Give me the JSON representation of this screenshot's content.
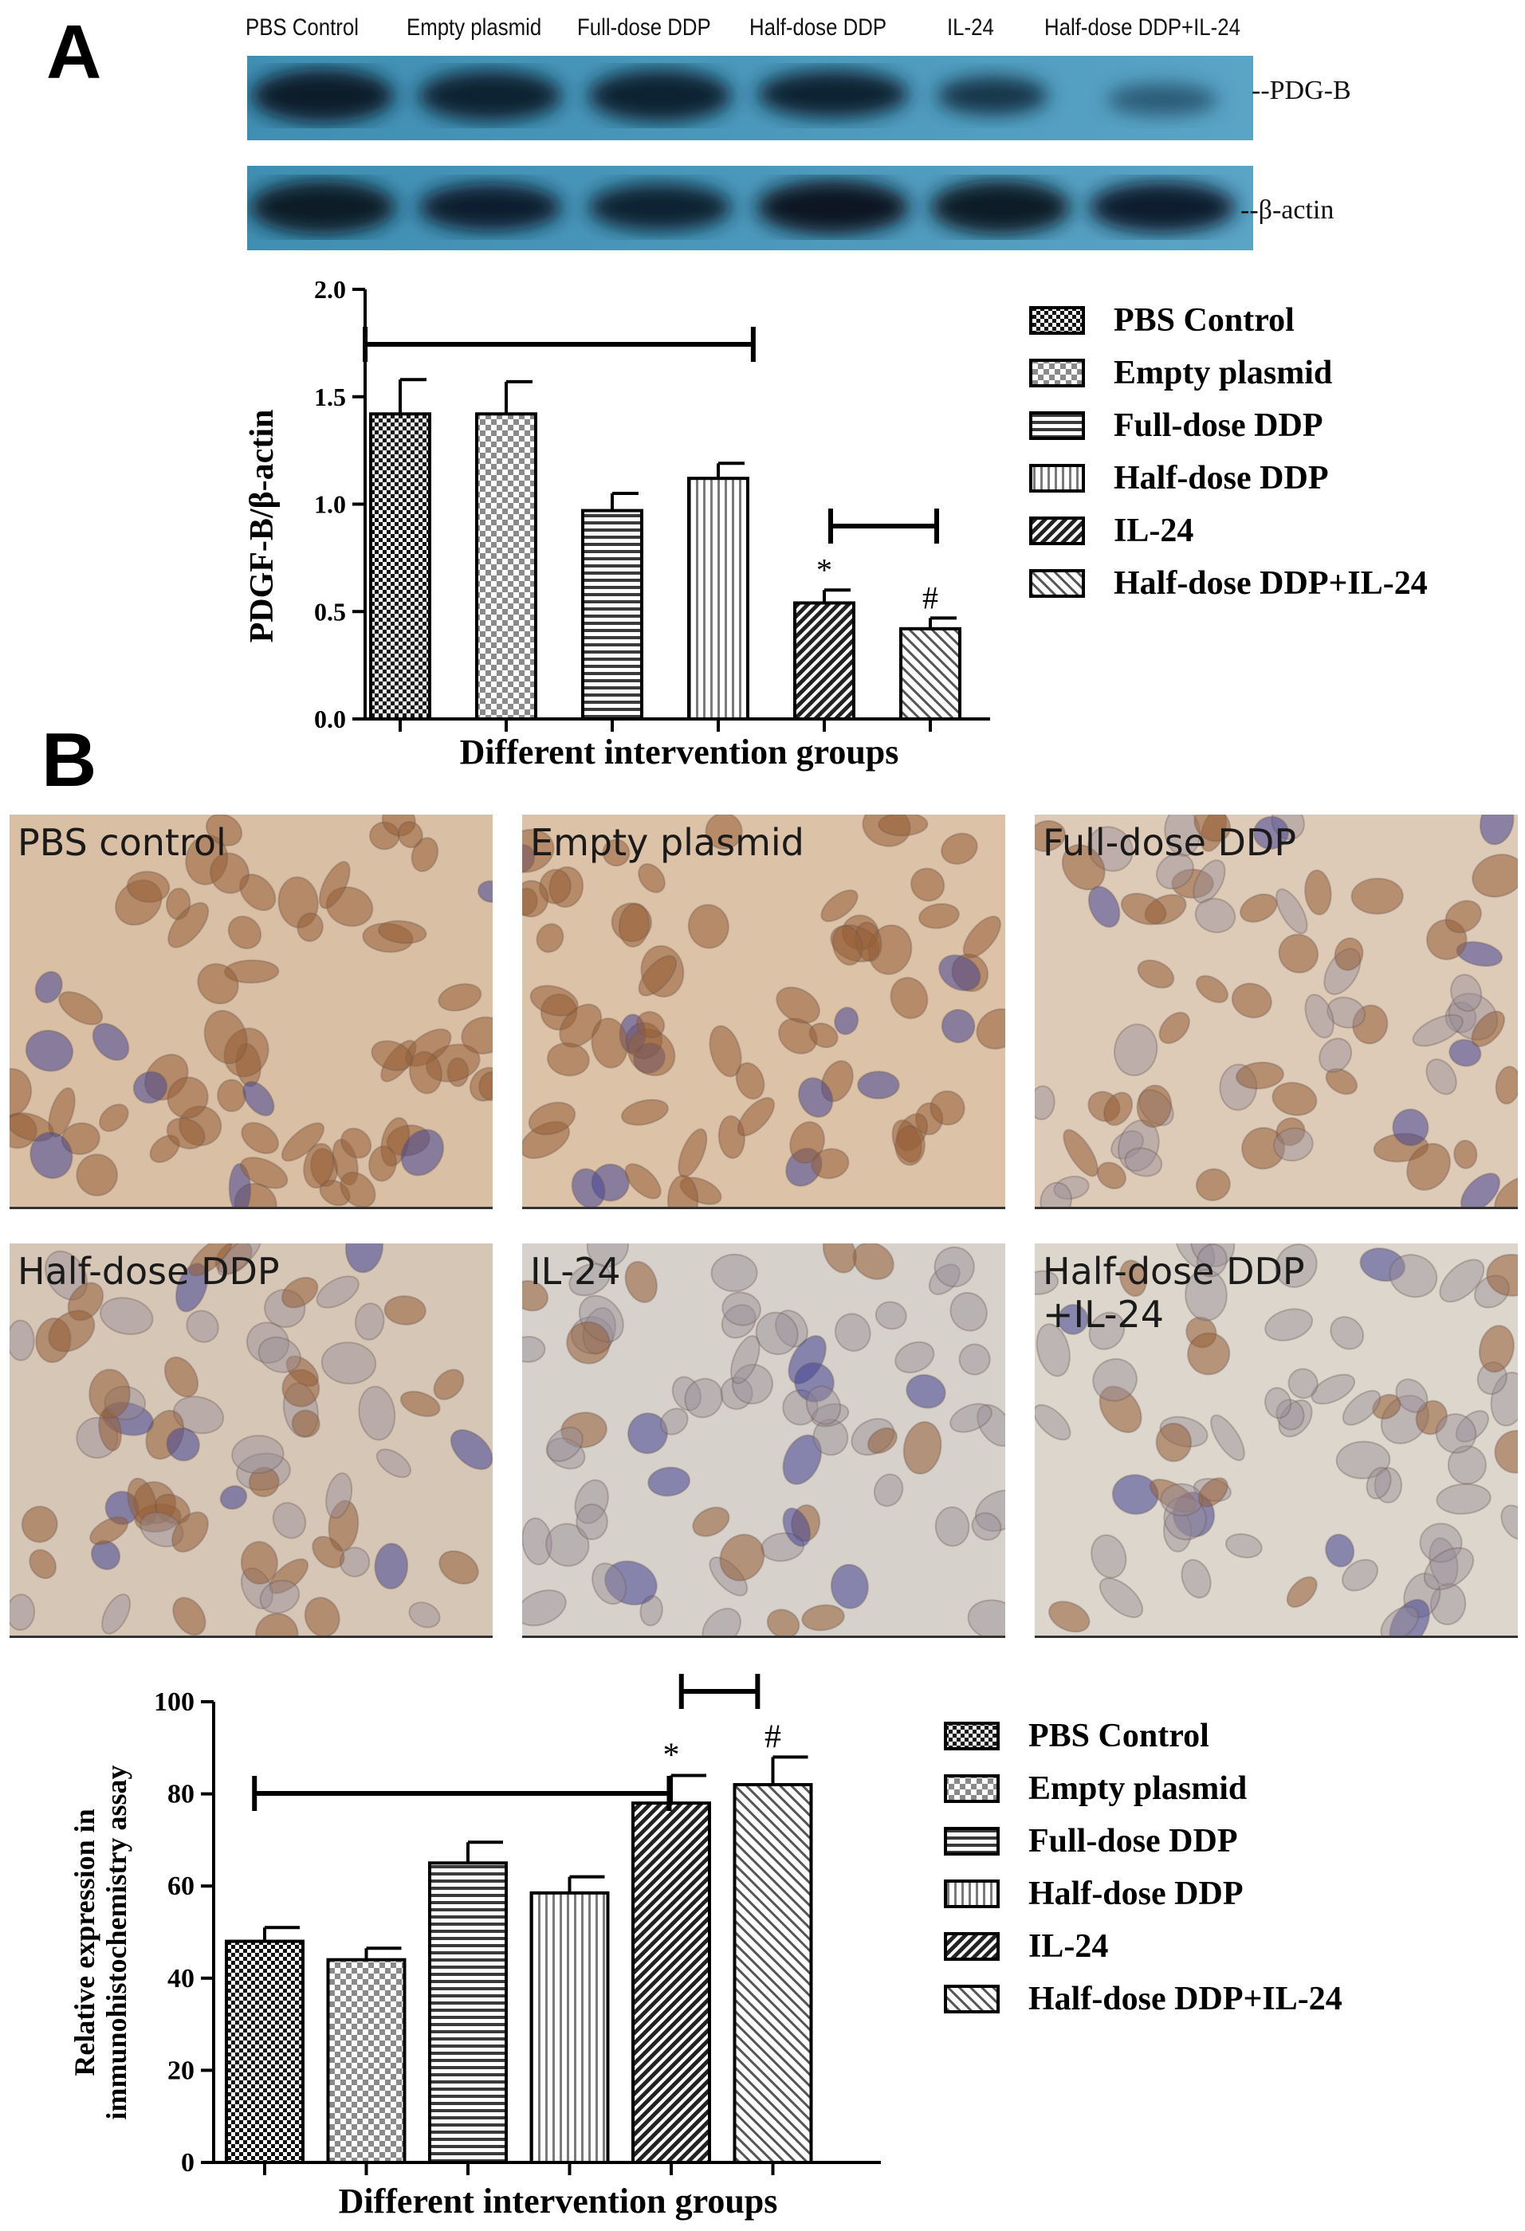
{
  "panel_a": {
    "letter": "A"
  },
  "panel_b": {
    "letter": "B"
  },
  "blot": {
    "lanes": [
      "PBS Control",
      "Empty plasmid",
      "Full-dose DDP",
      "Half-dose DDP",
      "IL-24",
      "Half-dose DDP+IL-24"
    ],
    "band_labels": [
      "--PDG-B",
      "--β-actin"
    ]
  },
  "micrographs": [
    {
      "label": "PBS control",
      "tint": "#d9bfa4"
    },
    {
      "label": "Empty plasmid",
      "tint": "#dcc2a6"
    },
    {
      "label": "Full-dose DDP",
      "tint": "#ddcbb8"
    },
    {
      "label": "Half-dose DDP",
      "tint": "#d6c6b6"
    },
    {
      "label": "IL-24",
      "tint": "#d6d1cb"
    },
    {
      "label": "Half-dose DDP\n+IL-24",
      "tint": "#dcd6cc"
    }
  ],
  "chart_data": [
    {
      "type": "bar",
      "categories": [
        "PBS Control",
        "Empty plasmid",
        "Full-dose DDP",
        "Half-dose DDP",
        "IL-24",
        "Half-dose DDP+IL-24"
      ],
      "values": [
        1.42,
        1.42,
        0.97,
        1.12,
        0.54,
        0.42
      ],
      "errors": [
        0.16,
        0.15,
        0.08,
        0.07,
        0.06,
        0.05
      ],
      "markers": [
        "",
        "",
        "",
        "",
        "*",
        "#"
      ],
      "xlabel": "Different intervention groups",
      "ylabel": "PDGF-B/β-actin",
      "ylim": [
        0,
        2.0
      ],
      "yticks": [
        "0.0",
        "0.5",
        "1.0",
        "1.5",
        "2.0"
      ],
      "legend": [
        "PBS Control",
        "Empty plasmid",
        "Full-dose DDP",
        "Half-dose DDP",
        "IL-24",
        "Half-dose DDP+IL-24"
      ],
      "legend_position": "right",
      "patterns": [
        "checker-dark",
        "checker-light",
        "horizontal",
        "vertical",
        "diagonal-dense",
        "diagonal-light"
      ],
      "grid": false
    },
    {
      "type": "bar",
      "categories": [
        "PBS Control",
        "Empty plasmid",
        "Full-dose DDP",
        "Half-dose DDP",
        "IL-24",
        "Half-dose DDP+IL-24"
      ],
      "values": [
        48,
        44,
        65,
        58.5,
        78,
        82
      ],
      "errors": [
        3,
        2.5,
        4.5,
        3.5,
        6,
        6
      ],
      "markers": [
        "",
        "",
        "",
        "",
        "*",
        "#"
      ],
      "xlabel": "Different intervention groups",
      "ylabel": "Relative expression in immunohistochemistry assay",
      "ylabel_lines": [
        "Relative expression in",
        "immunohistochemistry assay"
      ],
      "ylim": [
        0,
        100
      ],
      "yticks": [
        "0",
        "20",
        "40",
        "60",
        "80",
        "100"
      ],
      "legend": [
        "PBS Control",
        "Empty plasmid",
        "Full-dose DDP",
        "Half-dose DDP",
        "IL-24",
        "Half-dose DDP+IL-24"
      ],
      "legend_position": "right",
      "patterns": [
        "checker-dark",
        "checker-light",
        "horizontal",
        "vertical",
        "diagonal-dense",
        "diagonal-light"
      ],
      "grid": false
    }
  ]
}
